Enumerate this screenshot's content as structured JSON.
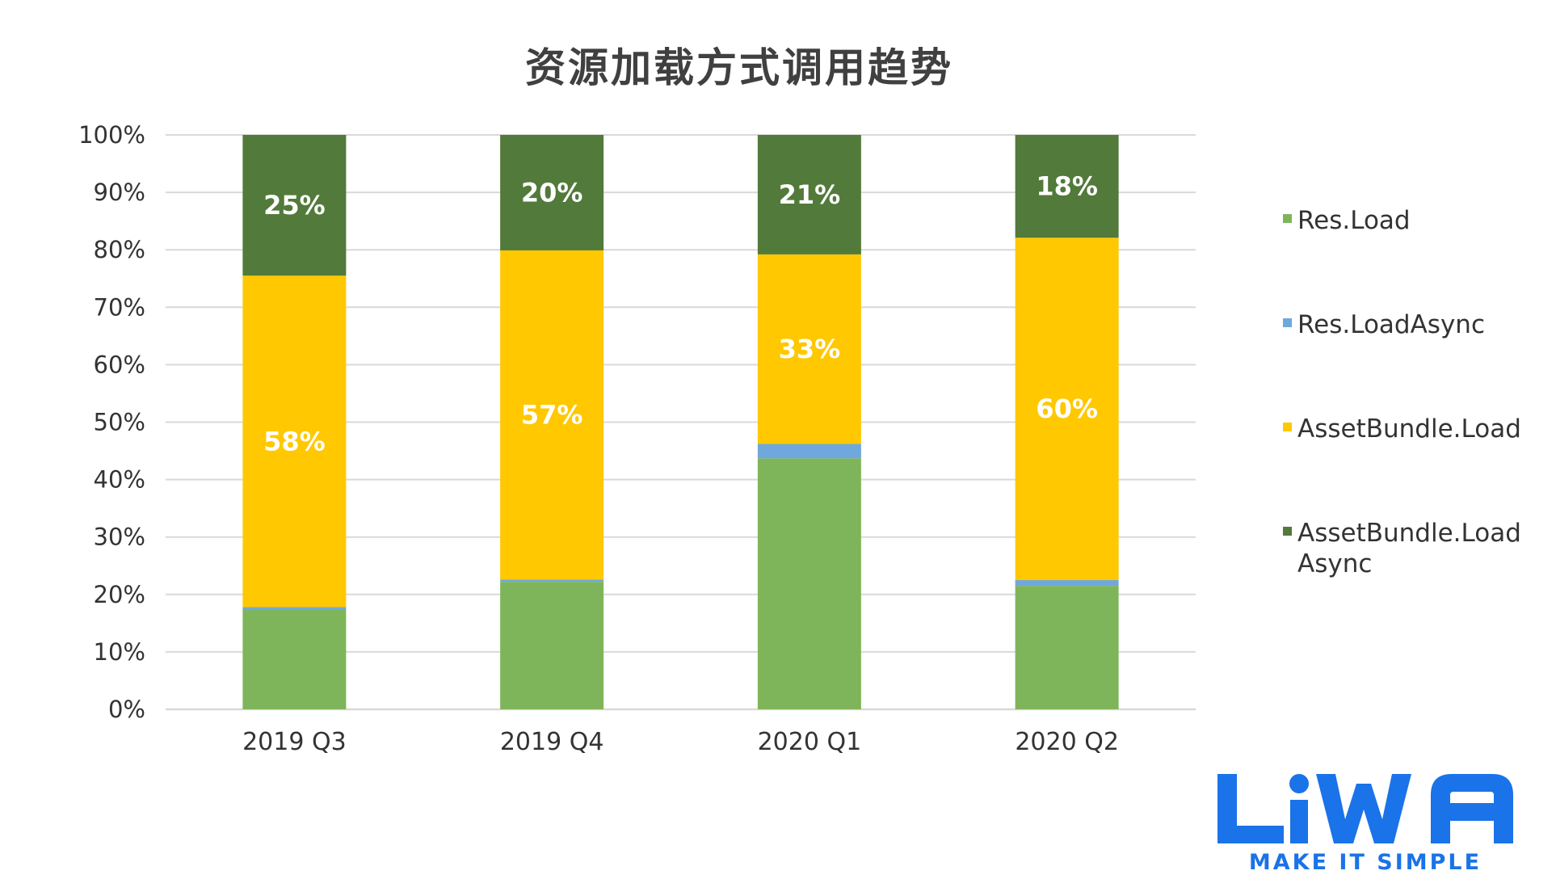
{
  "title": "资源加载方式调用趋势",
  "colors": {
    "Res.Load": "#7fb55a",
    "Res.LoadAsync": "#6fa8dc",
    "AssetBundle.Load": "#ffc800",
    "AssetBundle.LoadAsync": "#527a3a",
    "grid": "#d9d9d9",
    "logo": "#1a73e8"
  },
  "chart_data": {
    "type": "bar",
    "stacked": true,
    "categories": [
      "2019 Q3",
      "2019 Q4",
      "2020 Q1",
      "2020 Q2"
    ],
    "series": [
      {
        "name": "Res.Load",
        "values": [
          17.3,
          22.2,
          43.7,
          21.5
        ]
      },
      {
        "name": "Res.LoadAsync",
        "values": [
          0.5,
          0.4,
          2.5,
          1.0
        ]
      },
      {
        "name": "AssetBundle.Load",
        "values": [
          57.7,
          57.3,
          33.0,
          59.6
        ]
      },
      {
        "name": "AssetBundle.LoadAsync",
        "values": [
          24.5,
          20.1,
          20.8,
          17.9
        ]
      }
    ],
    "data_labels": [
      {
        "category": "2019 Q3",
        "series": "AssetBundle.Load",
        "text": "58%"
      },
      {
        "category": "2019 Q3",
        "series": "AssetBundle.LoadAsync",
        "text": "25%"
      },
      {
        "category": "2019 Q4",
        "series": "AssetBundle.Load",
        "text": "57%"
      },
      {
        "category": "2019 Q4",
        "series": "AssetBundle.LoadAsync",
        "text": "20%"
      },
      {
        "category": "2020 Q1",
        "series": "AssetBundle.Load",
        "text": "33%"
      },
      {
        "category": "2020 Q1",
        "series": "AssetBundle.LoadAsync",
        "text": "21%"
      },
      {
        "category": "2020 Q2",
        "series": "AssetBundle.Load",
        "text": "60%"
      },
      {
        "category": "2020 Q2",
        "series": "AssetBundle.LoadAsync",
        "text": "18%"
      }
    ],
    "y_ticks": [
      "0%",
      "10%",
      "20%",
      "30%",
      "40%",
      "50%",
      "60%",
      "70%",
      "80%",
      "90%",
      "100%"
    ],
    "ylim": [
      0,
      100
    ],
    "legend": [
      [
        "Res.Load"
      ],
      [
        "Res.LoadAsync"
      ],
      [
        "AssetBundle.Load"
      ],
      [
        "AssetBundle.Load",
        "Async"
      ]
    ],
    "legend_position": "right",
    "grid": true
  },
  "logo": {
    "wordmark": "LiWA",
    "tagline": "MAKE IT SIMPLE"
  }
}
